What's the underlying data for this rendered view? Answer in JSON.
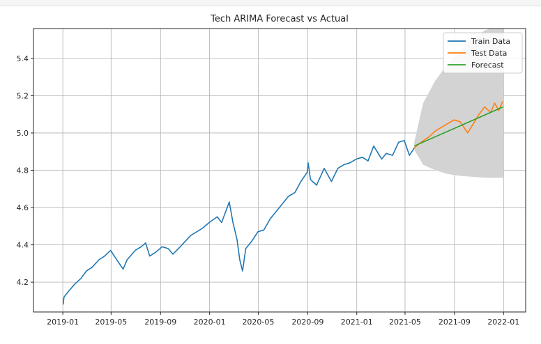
{
  "chart_data": {
    "type": "line",
    "title": "Tech ARIMA Forecast vs Actual",
    "xlabel": "",
    "ylabel": "",
    "x_tick_labels": [
      "2019-01",
      "2019-05",
      "2019-09",
      "2020-01",
      "2020-05",
      "2020-09",
      "2021-01",
      "2021-05",
      "2021-09",
      "2022-01"
    ],
    "y_tick_labels": [
      "4.2",
      "4.4",
      "4.6",
      "4.8",
      "5.0",
      "5.2",
      "5.4"
    ],
    "xlim": [
      "2018-10-20",
      "2022-02-25"
    ],
    "ylim": [
      4.04,
      5.56
    ],
    "grid": true,
    "legend_position": "top-right",
    "colors": {
      "train": "#1f77b4",
      "test": "#ff7f0e",
      "forecast": "#2ca02c",
      "confidence": "#d3d3d3"
    },
    "series": [
      {
        "name": "Train Data",
        "key": "train",
        "points": [
          [
            "2019-01-02",
            4.08
          ],
          [
            "2019-01-04",
            4.12
          ],
          [
            "2019-01-15",
            4.15
          ],
          [
            "2019-01-31",
            4.19
          ],
          [
            "2019-02-15",
            4.22
          ],
          [
            "2019-03-01",
            4.26
          ],
          [
            "2019-03-15",
            4.28
          ],
          [
            "2019-04-01",
            4.32
          ],
          [
            "2019-04-15",
            4.34
          ],
          [
            "2019-04-30",
            4.37
          ],
          [
            "2019-05-15",
            4.32
          ],
          [
            "2019-05-31",
            4.27
          ],
          [
            "2019-06-10",
            4.32
          ],
          [
            "2019-06-30",
            4.37
          ],
          [
            "2019-07-15",
            4.39
          ],
          [
            "2019-07-26",
            4.41
          ],
          [
            "2019-08-05",
            4.34
          ],
          [
            "2019-08-20",
            4.36
          ],
          [
            "2019-09-05",
            4.39
          ],
          [
            "2019-09-20",
            4.38
          ],
          [
            "2019-10-02",
            4.35
          ],
          [
            "2019-10-20",
            4.39
          ],
          [
            "2019-11-15",
            4.45
          ],
          [
            "2019-12-15",
            4.49
          ],
          [
            "2019-12-31",
            4.52
          ],
          [
            "2020-01-20",
            4.55
          ],
          [
            "2020-01-31",
            4.52
          ],
          [
            "2020-02-19",
            4.63
          ],
          [
            "2020-02-28",
            4.52
          ],
          [
            "2020-03-09",
            4.43
          ],
          [
            "2020-03-16",
            4.32
          ],
          [
            "2020-03-23",
            4.26
          ],
          [
            "2020-03-31",
            4.38
          ],
          [
            "2020-04-15",
            4.42
          ],
          [
            "2020-04-30",
            4.47
          ],
          [
            "2020-05-15",
            4.48
          ],
          [
            "2020-05-31",
            4.54
          ],
          [
            "2020-06-15",
            4.58
          ],
          [
            "2020-06-30",
            4.62
          ],
          [
            "2020-07-15",
            4.66
          ],
          [
            "2020-07-31",
            4.68
          ],
          [
            "2020-08-15",
            4.74
          ],
          [
            "2020-08-31",
            4.79
          ],
          [
            "2020-09-02",
            4.84
          ],
          [
            "2020-09-08",
            4.75
          ],
          [
            "2020-09-23",
            4.72
          ],
          [
            "2020-10-12",
            4.81
          ],
          [
            "2020-10-30",
            4.74
          ],
          [
            "2020-11-15",
            4.81
          ],
          [
            "2020-11-30",
            4.83
          ],
          [
            "2020-12-15",
            4.84
          ],
          [
            "2020-12-31",
            4.86
          ],
          [
            "2021-01-15",
            4.87
          ],
          [
            "2021-01-29",
            4.85
          ],
          [
            "2021-02-12",
            4.93
          ],
          [
            "2021-03-04",
            4.86
          ],
          [
            "2021-03-15",
            4.89
          ],
          [
            "2021-03-31",
            4.88
          ],
          [
            "2021-04-15",
            4.95
          ],
          [
            "2021-04-29",
            4.96
          ],
          [
            "2021-05-12",
            4.88
          ],
          [
            "2021-05-24",
            4.92
          ]
        ]
      },
      {
        "name": "Test Data",
        "key": "test",
        "points": [
          [
            "2021-05-24",
            4.92
          ],
          [
            "2021-06-10",
            4.95
          ],
          [
            "2021-06-30",
            4.98
          ],
          [
            "2021-07-15",
            5.01
          ],
          [
            "2021-07-30",
            5.03
          ],
          [
            "2021-08-15",
            5.05
          ],
          [
            "2021-08-31",
            5.07
          ],
          [
            "2021-09-15",
            5.06
          ],
          [
            "2021-10-04",
            5.0
          ],
          [
            "2021-10-15",
            5.04
          ],
          [
            "2021-11-01",
            5.1
          ],
          [
            "2021-11-15",
            5.14
          ],
          [
            "2021-11-30",
            5.11
          ],
          [
            "2021-12-10",
            5.16
          ],
          [
            "2021-12-20",
            5.12
          ],
          [
            "2021-12-30",
            5.17
          ]
        ]
      },
      {
        "name": "Forecast",
        "key": "forecast",
        "points": [
          [
            "2021-05-24",
            4.93
          ],
          [
            "2021-12-31",
            5.14
          ]
        ]
      }
    ],
    "confidence_band": {
      "x": [
        "2021-05-24",
        "2021-06-15",
        "2021-07-15",
        "2021-08-15",
        "2021-09-15",
        "2021-10-15",
        "2021-11-15",
        "2021-12-31"
      ],
      "upper": [
        4.95,
        5.16,
        5.28,
        5.37,
        5.44,
        5.5,
        5.55,
        5.58
      ],
      "lower": [
        4.91,
        4.83,
        4.8,
        4.78,
        4.77,
        4.765,
        4.76,
        4.76
      ]
    }
  }
}
